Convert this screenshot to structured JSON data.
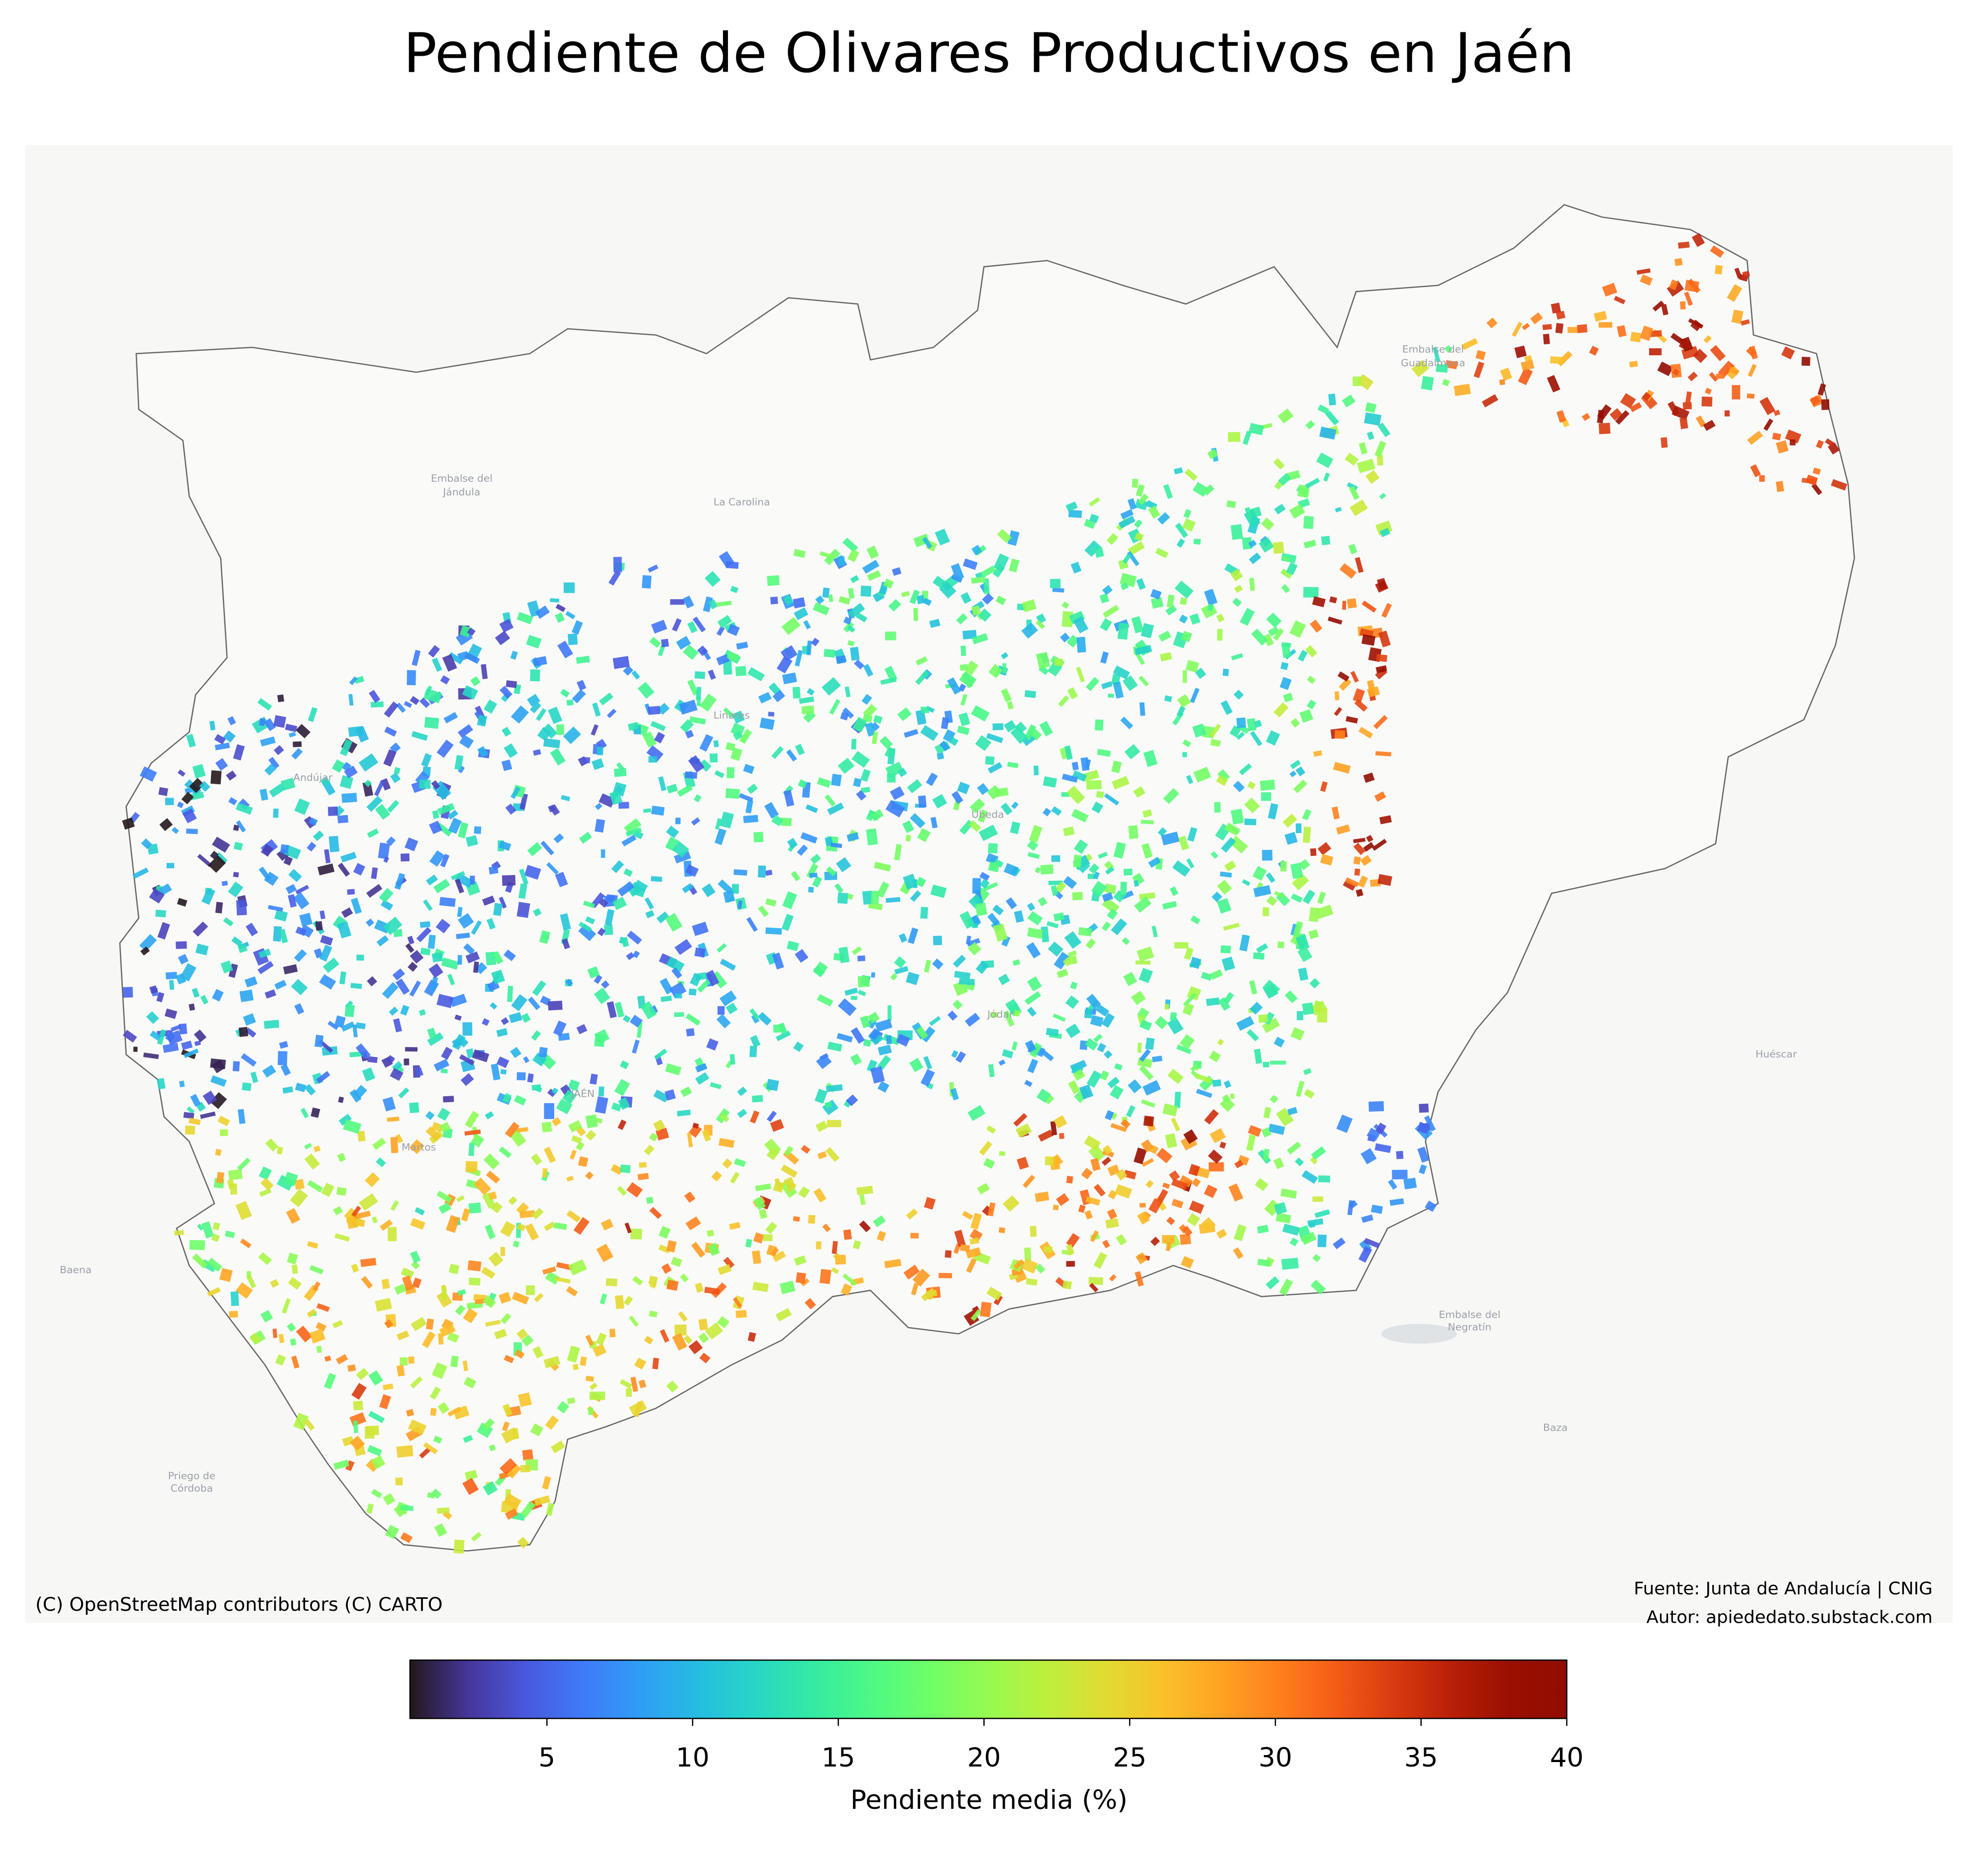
{
  "chart_data": {
    "type": "choropleth",
    "title": "Pendiente de Olivares Productivos en Jaén",
    "map_labels": [
      "Embalse del",
      "Jándula",
      "La Carolina",
      "Andújar",
      "Linares",
      "Úbeda",
      "Jódar",
      "JAÉN",
      "Martos",
      "Baena",
      "Priego de",
      "Córdoba",
      "Huéscar",
      "Baza",
      "Embalse del",
      "Negratín",
      "Embalse del",
      "Guadalmena"
    ],
    "attribution": "(C) OpenStreetMap contributors (C) CARTO",
    "source": "Fuente: Junta de Andalucía | CNIG",
    "author": "Autor: apiededato.substack.com",
    "colorbar": {
      "label": "Pendiente media (%)",
      "colormap": "turbo",
      "clim": [
        0.3,
        40
      ],
      "ticks": [
        5,
        10,
        15,
        20,
        25,
        30,
        35,
        40
      ]
    }
  }
}
